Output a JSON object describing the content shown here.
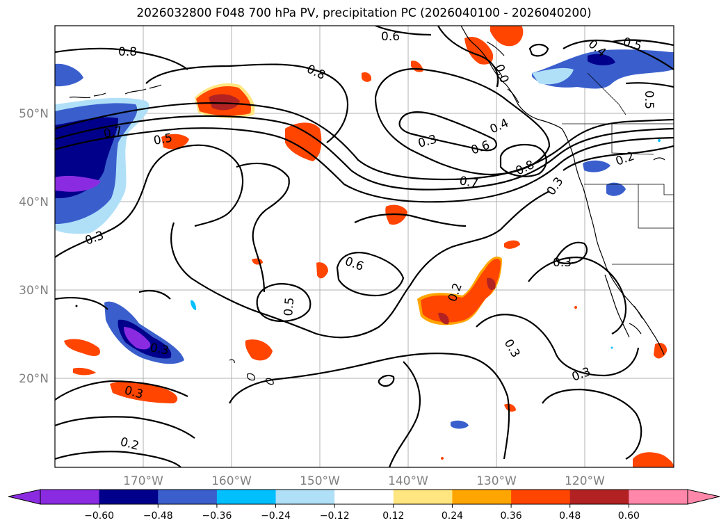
{
  "title": "2026032800 F048 700 hPa PV, precipitation PC (2026040100 - 2026040200)",
  "map": {
    "lon_ticks": [
      "170°W",
      "160°W",
      "150°W",
      "140°W",
      "130°W",
      "120°W"
    ],
    "lat_ticks": [
      "50°N",
      "40°N",
      "30°N",
      "20°N"
    ],
    "contour_labels": [
      {
        "text": "0.8"
      },
      {
        "text": "0.8"
      },
      {
        "text": "0.6"
      },
      {
        "text": "0.5"
      },
      {
        "text": "0.5"
      },
      {
        "text": "0.7"
      },
      {
        "text": "0.5"
      },
      {
        "text": "0.3"
      },
      {
        "text": "0.4"
      },
      {
        "text": "0.6"
      },
      {
        "text": "0.8"
      },
      {
        "text": "0.7"
      },
      {
        "text": "0.3"
      },
      {
        "text": "0.2"
      },
      {
        "text": "0.3"
      },
      {
        "text": "0.6"
      },
      {
        "text": "0.5"
      },
      {
        "text": "0.2"
      },
      {
        "text": "0.3"
      },
      {
        "text": "0.3"
      },
      {
        "text": "0.3"
      },
      {
        "text": "0.3"
      },
      {
        "text": "0.3"
      },
      {
        "text": "0.2"
      },
      {
        "text": "0.0"
      },
      {
        "text": "0.4"
      },
      {
        "text": "0.5"
      }
    ],
    "colors": {
      "purple": "#8a2be2",
      "navy": "#00008b",
      "royal": "#3a5fcd",
      "sky": "#00bfff",
      "pale_blue": "#b0e0f8",
      "pale_yellow": "#ffe680",
      "orange": "#ffa500",
      "red_orange": "#ff4500",
      "dark_red": "#b22222",
      "pink": "#ff88aa"
    }
  },
  "colorbar": {
    "ticks": [
      "−0.60",
      "−0.48",
      "−0.36",
      "−0.24",
      "−0.12",
      "0.12",
      "0.24",
      "0.36",
      "0.48",
      "0.60"
    ],
    "segment_colors": [
      "#8a2be2",
      "#00008b",
      "#3a5fcd",
      "#00bfff",
      "#b0e0f8",
      "#ffffff",
      "#ffe680",
      "#ffa500",
      "#ff4500",
      "#b22222",
      "#ff88aa"
    ]
  }
}
